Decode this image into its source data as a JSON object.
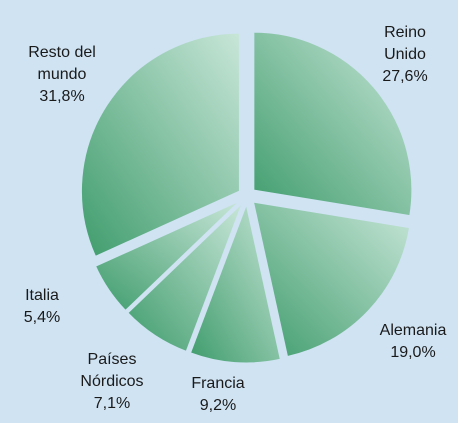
{
  "chart_data": {
    "type": "pie",
    "categories": [
      "Reino Unido",
      "Alemania",
      "Francia",
      "Países Nórdicos",
      "Italia",
      "Resto del mundo"
    ],
    "values": [
      27.6,
      19.0,
      9.2,
      7.1,
      5.4,
      31.8
    ],
    "value_labels": [
      "27,6%",
      "19,0%",
      "9,2%",
      "7,1%",
      "5,4%",
      "31,8%"
    ],
    "color": "#3f9c6c"
  }
}
